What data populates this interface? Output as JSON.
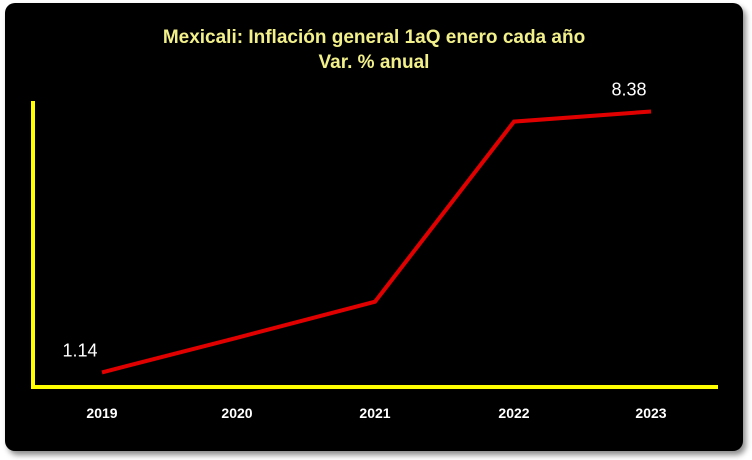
{
  "chart_data": {
    "type": "line",
    "title": "Mexicali: Inflación general 1aQ enero cada año",
    "subtitle": "Var. % anual",
    "categories": [
      "2019",
      "2020",
      "2021",
      "2022",
      "2023"
    ],
    "series": [
      {
        "values": [
          1.14,
          2.1,
          3.1,
          8.1,
          8.38
        ],
        "color": "#e10000"
      }
    ],
    "data_labels": [
      {
        "index": 0,
        "text": "1.14"
      },
      {
        "index": 4,
        "text": "8.38"
      }
    ],
    "ylim": [
      0.9,
      8.7
    ],
    "axis_color": "#ffff00",
    "background": "#000000",
    "title_color": "#f2f08a",
    "grid": false,
    "legend": "none"
  }
}
